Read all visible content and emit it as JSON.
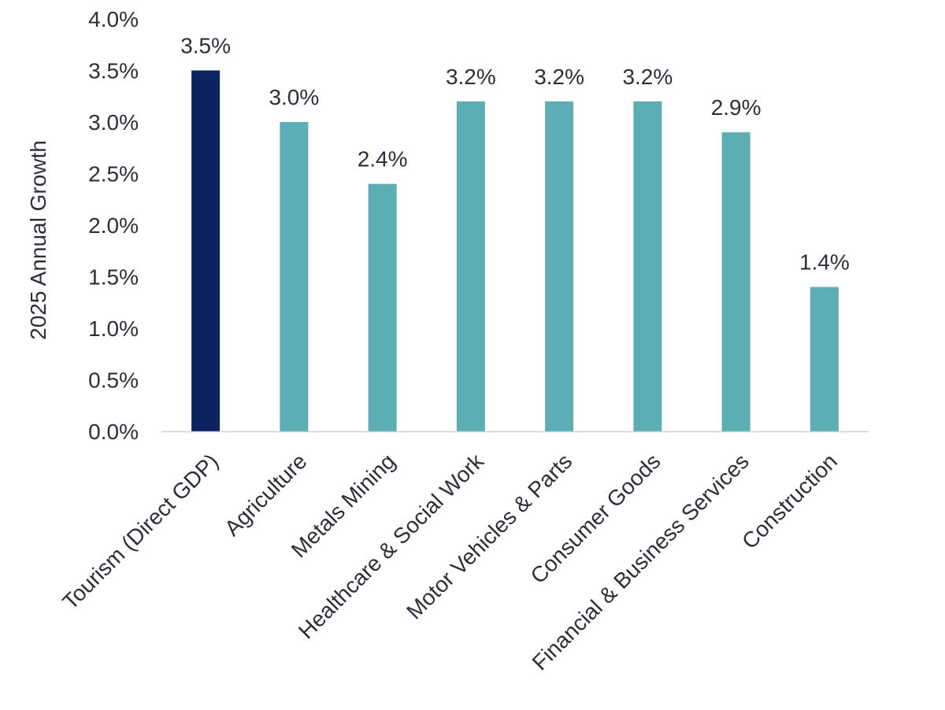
{
  "chart_data": {
    "type": "bar",
    "ylabel": "2025 Annual Growth",
    "ylim": [
      0,
      4.0
    ],
    "y_ticks": [
      "0.0%",
      "0.5%",
      "1.0%",
      "1.5%",
      "2.0%",
      "2.5%",
      "3.0%",
      "3.5%",
      "4.0%"
    ],
    "y_tick_values": [
      0,
      0.5,
      1.0,
      1.5,
      2.0,
      2.5,
      3.0,
      3.5,
      4.0
    ],
    "categories": [
      "Tourism (Direct GDP)",
      "Agriculture",
      "Metals Mining",
      "Healthcare & Social Work",
      "Motor Vehicles & Parts",
      "Consumer Goods",
      "Financial & Business Services",
      "Construction"
    ],
    "values": [
      3.5,
      3.0,
      2.4,
      3.2,
      3.2,
      3.2,
      2.9,
      1.4
    ],
    "data_labels": [
      "3.5%",
      "3.0%",
      "2.4%",
      "3.2%",
      "3.2%",
      "3.2%",
      "2.9%",
      "1.4%"
    ],
    "colors": {
      "highlight": "#0b2360",
      "default": "#5aaeb4",
      "axis_line": "#d0d0d0",
      "text": "#2b2f3a"
    },
    "highlight_index": 0,
    "grid": false,
    "legend": "none"
  }
}
